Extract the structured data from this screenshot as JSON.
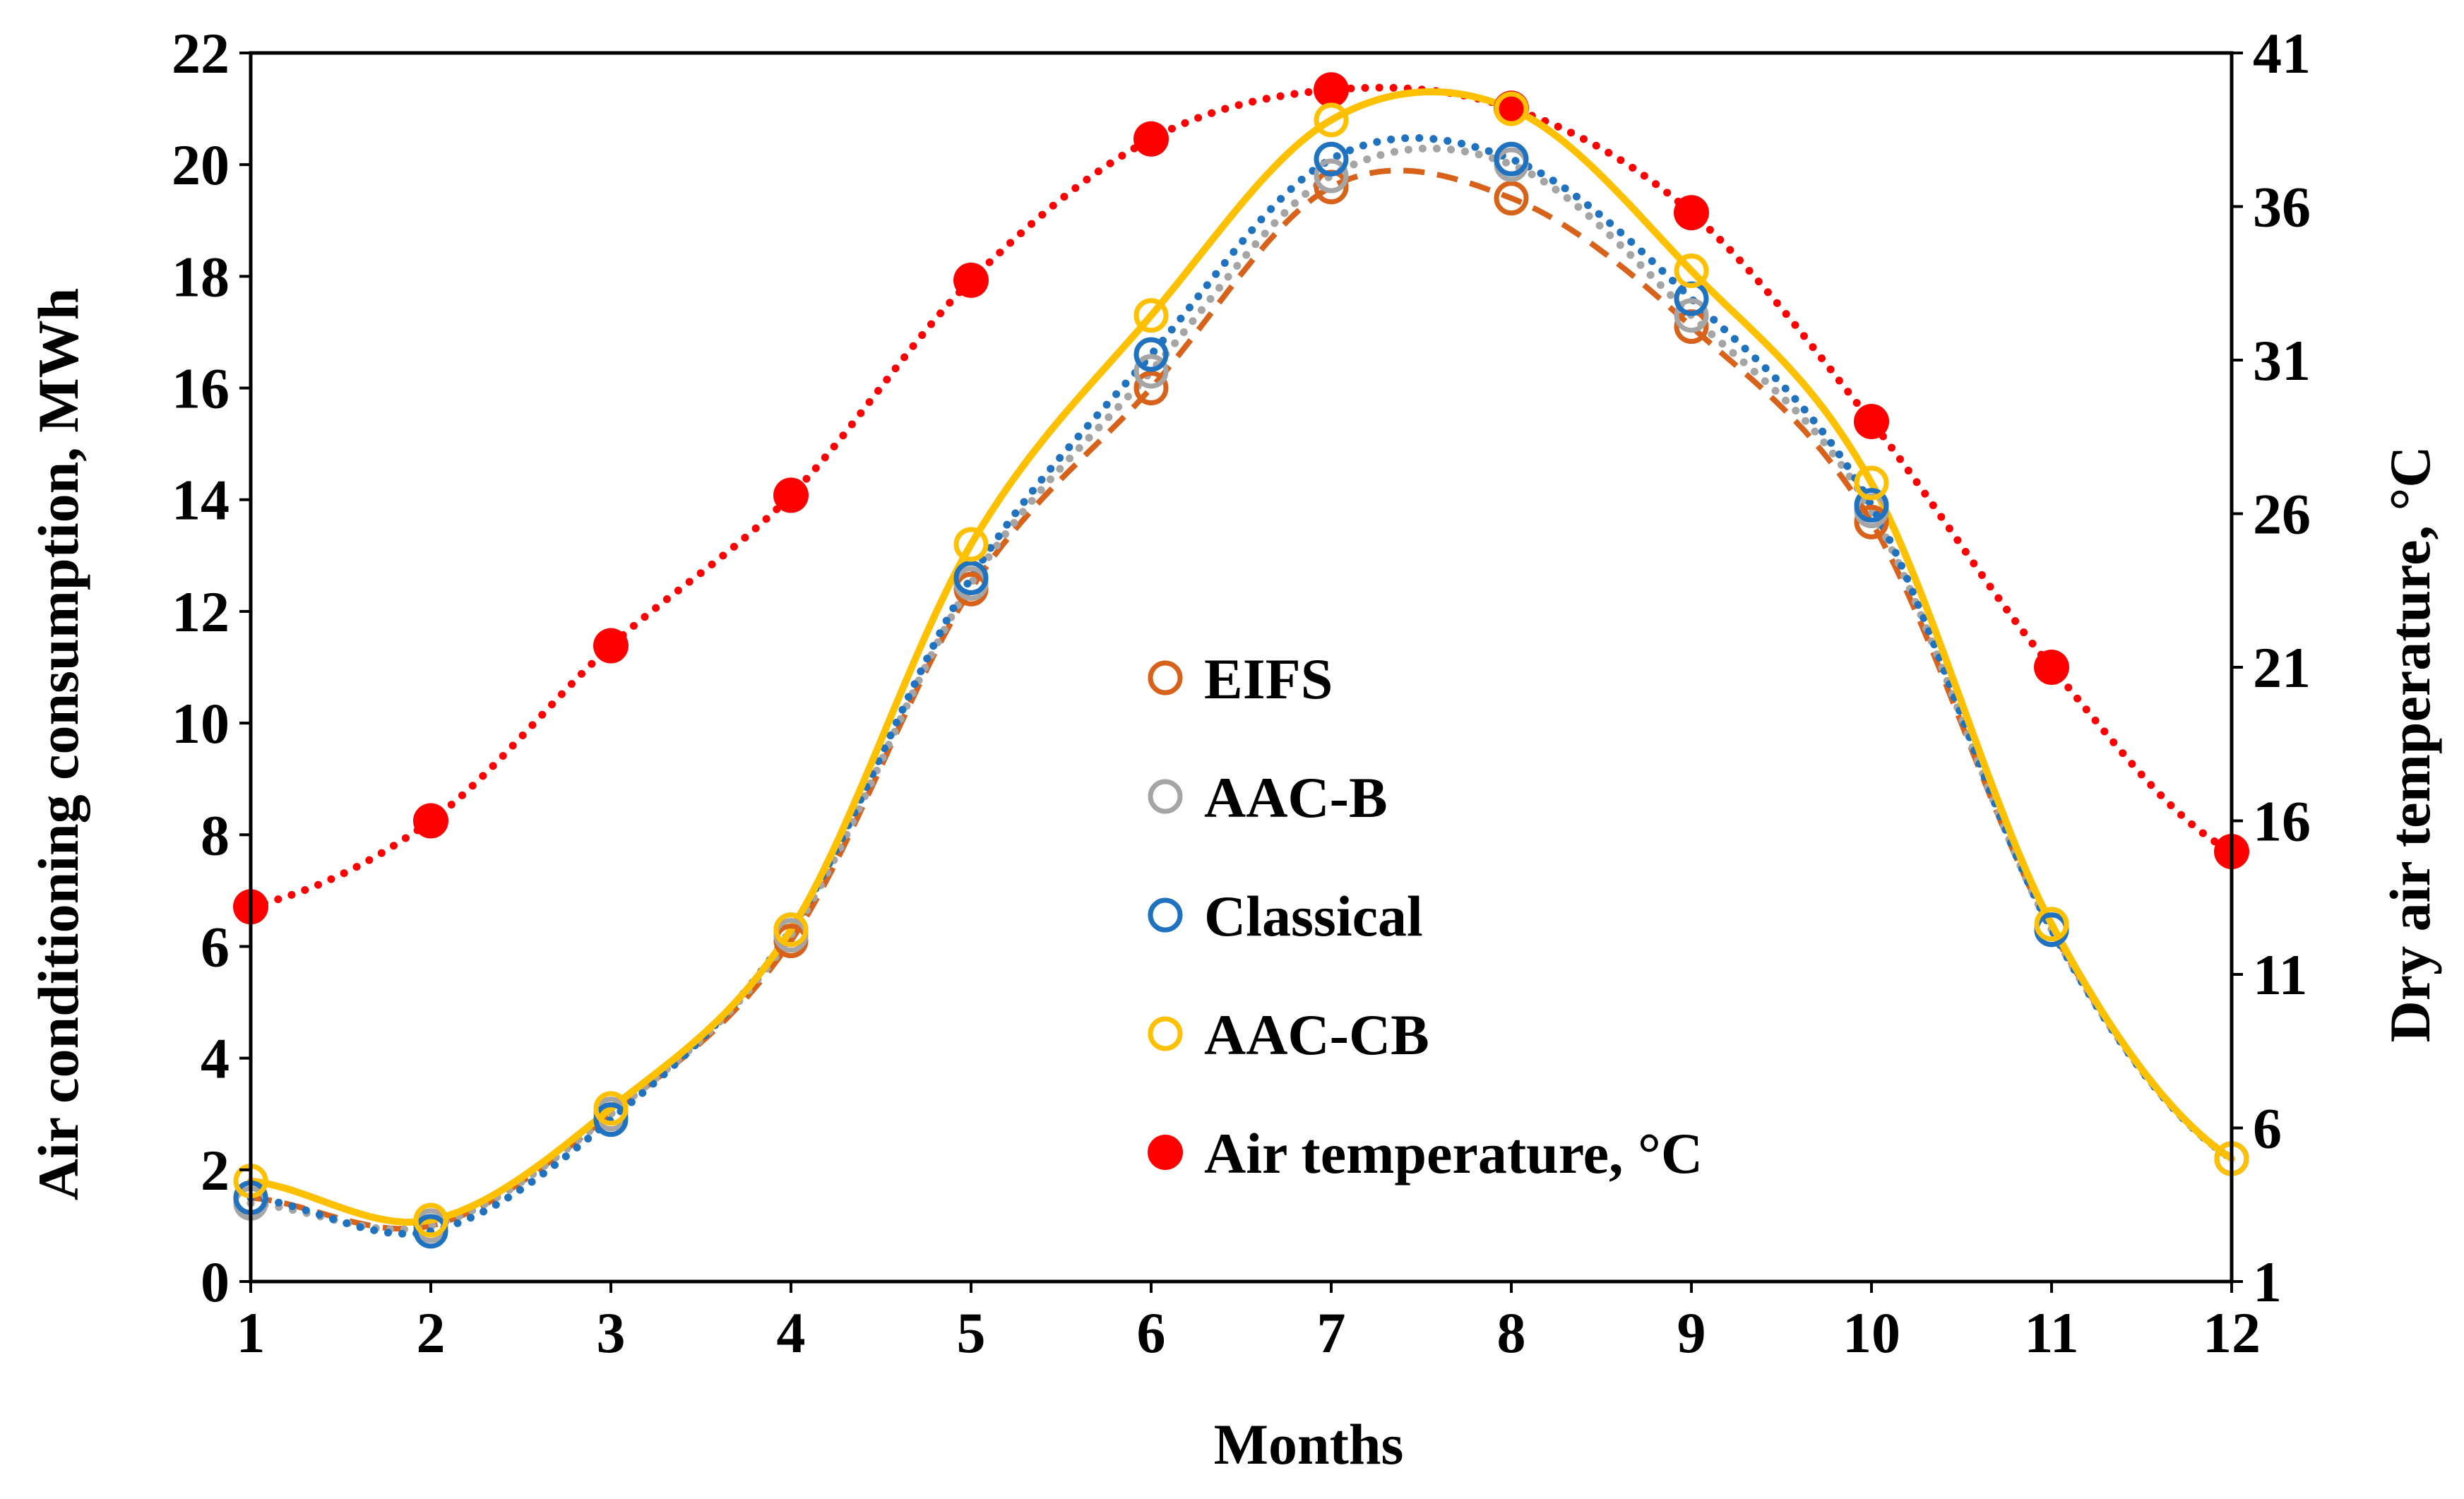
{
  "chart_data": {
    "type": "scatter",
    "title": "",
    "xlabel": "Months",
    "ylabel": "Air conditioning consumption, MWh",
    "y2label": "Dry air temperature, °C",
    "xlim": [
      1,
      12
    ],
    "ylim": [
      0,
      22
    ],
    "y2lim": [
      1,
      41
    ],
    "xticks": [
      "1",
      "2",
      "3",
      "4",
      "5",
      "6",
      "7",
      "8",
      "9",
      "10",
      "11",
      "12"
    ],
    "yticks": [
      "0",
      "2",
      "4",
      "6",
      "8",
      "10",
      "12",
      "14",
      "16",
      "18",
      "20",
      "22"
    ],
    "y2ticks": [
      "1",
      "6",
      "11",
      "16",
      "21",
      "26",
      "31",
      "36",
      "41"
    ],
    "grid": false,
    "legend_position": "center",
    "x": [
      1,
      2,
      3,
      4,
      5,
      6,
      7,
      8,
      9,
      10,
      11,
      12
    ],
    "series": [
      {
        "name": "EIFS",
        "axis": "left",
        "marker": "open-circle",
        "color": "#D9621B",
        "line": "dashed",
        "values": [
          1.5,
          1.0,
          3.0,
          6.1,
          12.4,
          16.0,
          19.6,
          19.4,
          17.1,
          13.6,
          6.3,
          2.2
        ]
      },
      {
        "name": "AAC-B",
        "axis": "left",
        "marker": "open-circle",
        "color": "#A5A5A5",
        "line": "dotted",
        "values": [
          1.4,
          1.0,
          3.0,
          6.2,
          12.5,
          16.3,
          19.8,
          20.0,
          17.3,
          13.8,
          6.3,
          2.2
        ]
      },
      {
        "name": "Classical",
        "axis": "left",
        "marker": "open-circle",
        "color": "#1F72BF",
        "line": "dotted",
        "values": [
          1.5,
          0.9,
          2.9,
          6.3,
          12.6,
          16.6,
          20.1,
          20.1,
          17.6,
          13.9,
          6.3,
          2.2
        ]
      },
      {
        "name": "AAC-CB",
        "axis": "left",
        "marker": "open-circle",
        "color": "#FFC000",
        "line": "solid",
        "values": [
          1.8,
          1.1,
          3.1,
          6.3,
          13.2,
          17.3,
          20.8,
          21.0,
          18.1,
          14.3,
          6.4,
          2.2
        ]
      },
      {
        "name": "Air temperature, °C",
        "axis": "right",
        "marker": "filled-circle",
        "color": "#FF0000",
        "line": "dotted",
        "values": [
          13.2,
          16.0,
          21.7,
          26.6,
          33.6,
          38.2,
          39.8,
          39.2,
          35.8,
          29.0,
          21.0,
          15.0
        ]
      }
    ]
  }
}
